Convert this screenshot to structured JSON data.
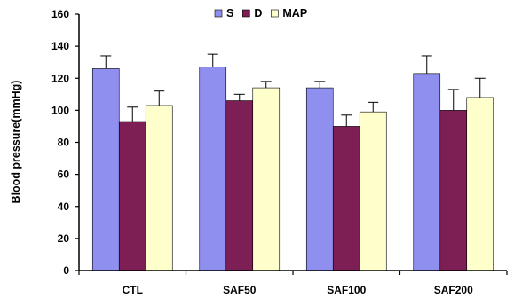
{
  "chart_data": {
    "type": "bar",
    "title": "",
    "xlabel": "",
    "ylabel": "Blood pressure(mmHg)",
    "ylim": [
      0,
      160
    ],
    "yticks": [
      0,
      20,
      40,
      60,
      80,
      100,
      120,
      140,
      160
    ],
    "grid": false,
    "legend_position": "top-center",
    "categories": [
      "CTL",
      "SAF50",
      "SAF100",
      "SAF200"
    ],
    "series": [
      {
        "name": "S",
        "color": "#8f8ff0",
        "values": [
          126,
          127,
          114,
          123
        ],
        "errors": [
          8,
          8,
          4,
          11
        ]
      },
      {
        "name": "D",
        "color": "#7d1f55",
        "values": [
          93,
          106,
          90,
          100
        ],
        "errors": [
          9,
          4,
          7,
          13
        ]
      },
      {
        "name": "MAP",
        "color": "#ffffcc",
        "values": [
          103,
          114,
          99,
          108
        ],
        "errors": [
          9,
          4,
          6,
          12
        ]
      }
    ]
  }
}
